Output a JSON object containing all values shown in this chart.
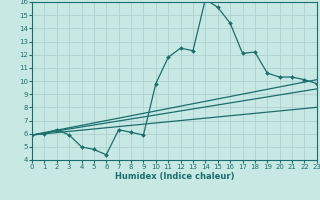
{
  "xlabel": "Humidex (Indice chaleur)",
  "bg_color": "#c8e8e4",
  "line_color": "#1a6e6e",
  "grid_color": "#a8cccc",
  "xlim": [
    0,
    23
  ],
  "ylim": [
    4,
    16
  ],
  "xticks": [
    0,
    1,
    2,
    3,
    4,
    5,
    6,
    7,
    8,
    9,
    10,
    11,
    12,
    13,
    14,
    15,
    16,
    17,
    18,
    19,
    20,
    21,
    22,
    23
  ],
  "yticks": [
    4,
    5,
    6,
    7,
    8,
    9,
    10,
    11,
    12,
    13,
    14,
    15,
    16
  ],
  "line1_x": [
    0,
    1,
    2,
    3,
    4,
    5,
    6,
    7,
    8,
    9,
    10,
    11,
    12,
    13,
    14,
    15,
    16,
    17,
    18,
    19,
    20,
    21,
    22,
    23
  ],
  "line1_y": [
    5.9,
    6.0,
    6.3,
    5.9,
    5.0,
    4.8,
    4.4,
    6.3,
    6.1,
    5.9,
    9.8,
    11.8,
    12.5,
    12.3,
    16.2,
    15.6,
    14.4,
    12.1,
    12.2,
    10.6,
    10.3,
    10.3,
    10.1,
    9.8
  ],
  "line2_x": [
    0,
    23
  ],
  "line2_y": [
    5.9,
    8.0
  ],
  "line3_x": [
    0,
    23
  ],
  "line3_y": [
    5.9,
    10.1
  ],
  "line4_x": [
    0,
    23
  ],
  "line4_y": [
    5.9,
    9.4
  ]
}
